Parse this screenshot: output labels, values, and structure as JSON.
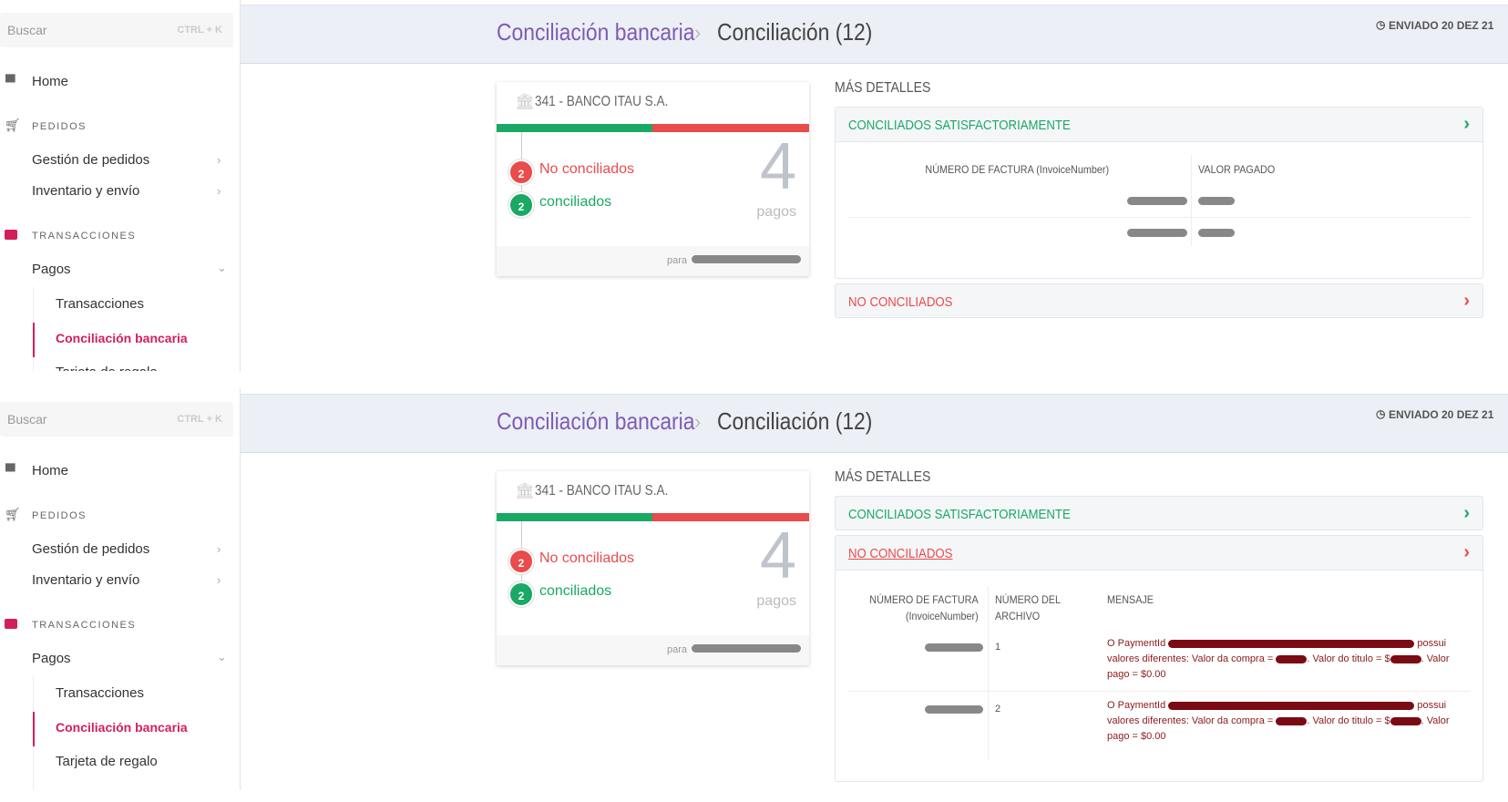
{
  "colors": {
    "accent_purple": "#7e5bb6",
    "green": "#1aa865",
    "red": "#ea4b4b",
    "sidebar_active": "#d21f5b",
    "message_red": "#8b1a1a"
  },
  "sidebar": {
    "search_placeholder": "Buscar",
    "search_shortcut": "CTRL + K",
    "home": "Home",
    "pedidos": "PEDIDOS",
    "gestion": "Gestión de pedidos",
    "inventario": "Inventario y envío",
    "transacciones_section": "TRANSACCIONES",
    "pagos": "Pagos",
    "transacciones": "Transacciones",
    "conciliacion": "Conciliación bancaria",
    "tarjeta": "Tarjeta de regalo",
    "icons": [
      "store-icon",
      "cart-icon",
      "credit-card-icon"
    ]
  },
  "header": {
    "crumb_parent": "Conciliación bancaria",
    "crumb_current": "Conciliación (12)",
    "sent": "ENVIADO 20 DEZ 21"
  },
  "card": {
    "bank": "341 - BANCO ITAU S.A.",
    "no_conciliados_count": "2",
    "no_conciliados_label": "No conciliados",
    "conciliados_count": "2",
    "conciliados_label": "conciliados",
    "total": "4",
    "total_label": "pagos",
    "para": "para",
    "reconciled_fraction": 0.5
  },
  "details": {
    "title": "MÁS DETALLES",
    "ok_title": "CONCILIADOS SATISFACTORIAMENTE",
    "ko_title": "NO CONCILIADOS",
    "ok_table": {
      "headers": [
        "NÚMERO DE FACTURA (InvoiceNumber)",
        "VALOR PAGADO"
      ]
    },
    "ko_table": {
      "headers": [
        "NÚMERO DE FACTURA",
        "(InvoiceNumber)",
        "NÚMERO DEL",
        "ARCHIVO",
        "MENSAJE"
      ],
      "rows": [
        {
          "file": "1",
          "msg_a": "O PaymentId",
          "msg_b": "possui valores diferentes: Valor da compra =",
          "msg_c": ". Valor do titulo = $",
          "msg_d": ". Valor pago = $0.00"
        },
        {
          "file": "2",
          "msg_a": "O PaymentId",
          "msg_b": "possui valores diferentes: Valor da compra =",
          "msg_c": ". Valor do titulo = $",
          "msg_d": ". Valor pago = $0.00"
        }
      ]
    }
  }
}
